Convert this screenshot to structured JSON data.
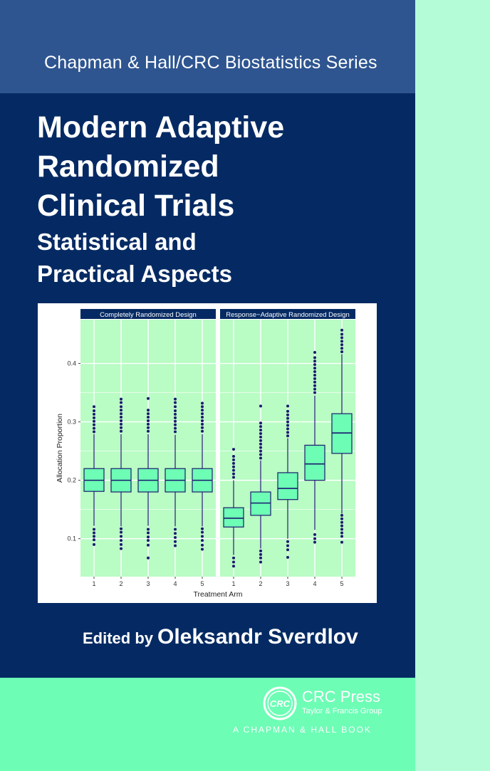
{
  "cover": {
    "series": "Chapman & Hall/CRC Biostatistics Series",
    "title_lines": [
      "Modern Adaptive",
      "Randomized",
      "Clinical Trials"
    ],
    "subtitle_lines": [
      "Statistical and",
      "Practical Aspects"
    ],
    "edited_label": "Edited by",
    "editor": "Oleksandr Sverdlov",
    "publisher_name": "CRC Press",
    "publisher_group": "Taylor & Francis Group",
    "publisher_book": "A CHAPMAN & HALL BOOK",
    "logo_text": "CRC"
  },
  "colors": {
    "cover_navy": "#052a63",
    "series_band": "#2e5590",
    "mint": "#6dfdb5",
    "side_strip": "#b4fbd8",
    "panel_bg": "#b9fcc4",
    "box_fill": "#6dfdb5",
    "box_line": "#1a1a6e"
  },
  "chart_data": {
    "type": "box",
    "xlabel": "Treatment Arm",
    "ylabel": "Allocation Proportion",
    "ylim": [
      0.035,
      0.475
    ],
    "yticks": [
      0.1,
      0.2,
      0.3,
      0.4
    ],
    "ytick_labels": [
      "0.1",
      "0.2",
      "0.3",
      "0.4"
    ],
    "categories": [
      "1",
      "2",
      "3",
      "4",
      "5"
    ],
    "grid": true,
    "panels": [
      {
        "title": "Completely Randomized Design",
        "boxes": [
          {
            "arm": "1",
            "q1": 0.181,
            "median": 0.2,
            "q3": 0.22,
            "whisker_low": 0.122,
            "whisker_high": 0.279,
            "outliers": [
              0.09,
              0.098,
              0.104,
              0.11,
              0.116,
              0.283,
              0.289,
              0.295,
              0.301,
              0.307,
              0.313,
              0.319,
              0.326
            ]
          },
          {
            "arm": "2",
            "q1": 0.18,
            "median": 0.2,
            "q3": 0.22,
            "whisker_low": 0.121,
            "whisker_high": 0.279,
            "outliers": [
              0.083,
              0.09,
              0.097,
              0.104,
              0.111,
              0.117,
              0.284,
              0.29,
              0.296,
              0.302,
              0.308,
              0.314,
              0.32,
              0.326,
              0.333,
              0.339
            ]
          },
          {
            "arm": "3",
            "q1": 0.18,
            "median": 0.2,
            "q3": 0.22,
            "whisker_low": 0.122,
            "whisker_high": 0.279,
            "outliers": [
              0.067,
              0.089,
              0.097,
              0.103,
              0.11,
              0.116,
              0.284,
              0.29,
              0.296,
              0.302,
              0.308,
              0.314,
              0.32,
              0.34
            ]
          },
          {
            "arm": "4",
            "q1": 0.18,
            "median": 0.2,
            "q3": 0.22,
            "whisker_low": 0.121,
            "whisker_high": 0.278,
            "outliers": [
              0.088,
              0.095,
              0.102,
              0.109,
              0.116,
              0.283,
              0.289,
              0.295,
              0.301,
              0.307,
              0.313,
              0.319,
              0.326,
              0.333,
              0.339
            ]
          },
          {
            "arm": "5",
            "q1": 0.18,
            "median": 0.2,
            "q3": 0.22,
            "whisker_low": 0.121,
            "whisker_high": 0.279,
            "outliers": [
              0.082,
              0.089,
              0.097,
              0.104,
              0.111,
              0.117,
              0.284,
              0.29,
              0.296,
              0.302,
              0.308,
              0.314,
              0.32,
              0.326,
              0.332
            ]
          }
        ]
      },
      {
        "title": "Response−Adaptive Randomized Design",
        "boxes": [
          {
            "arm": "1",
            "q1": 0.12,
            "median": 0.135,
            "q3": 0.153,
            "whisker_low": 0.072,
            "whisker_high": 0.2,
            "outliers": [
              0.053,
              0.06,
              0.067,
              0.205,
              0.211,
              0.217,
              0.223,
              0.229,
              0.235,
              0.241,
              0.253
            ]
          },
          {
            "arm": "2",
            "q1": 0.14,
            "median": 0.161,
            "q3": 0.18,
            "whisker_low": 0.083,
            "whisker_high": 0.234,
            "outliers": [
              0.06,
              0.067,
              0.073,
              0.079,
              0.238,
              0.244,
              0.25,
              0.256,
              0.262,
              0.268,
              0.274,
              0.28,
              0.286,
              0.292,
              0.298,
              0.327
            ]
          },
          {
            "arm": "3",
            "q1": 0.167,
            "median": 0.186,
            "q3": 0.213,
            "whisker_low": 0.1,
            "whisker_high": 0.272,
            "outliers": [
              0.068,
              0.081,
              0.088,
              0.095,
              0.276,
              0.282,
              0.288,
              0.294,
              0.3,
              0.306,
              0.312,
              0.318,
              0.327
            ]
          },
          {
            "arm": "4",
            "q1": 0.2,
            "median": 0.228,
            "q3": 0.26,
            "whisker_low": 0.115,
            "whisker_high": 0.345,
            "outliers": [
              0.094,
              0.1,
              0.107,
              0.35,
              0.356,
              0.362,
              0.368,
              0.374,
              0.38,
              0.386,
              0.392,
              0.398,
              0.404,
              0.41,
              0.419
            ]
          },
          {
            "arm": "5",
            "q1": 0.246,
            "median": 0.281,
            "q3": 0.314,
            "whisker_low": 0.143,
            "whisker_high": 0.416,
            "outliers": [
              0.094,
              0.104,
              0.11,
              0.116,
              0.122,
              0.128,
              0.134,
              0.14,
              0.42,
              0.426,
              0.432,
              0.438,
              0.444,
              0.45,
              0.457
            ]
          }
        ]
      }
    ]
  }
}
